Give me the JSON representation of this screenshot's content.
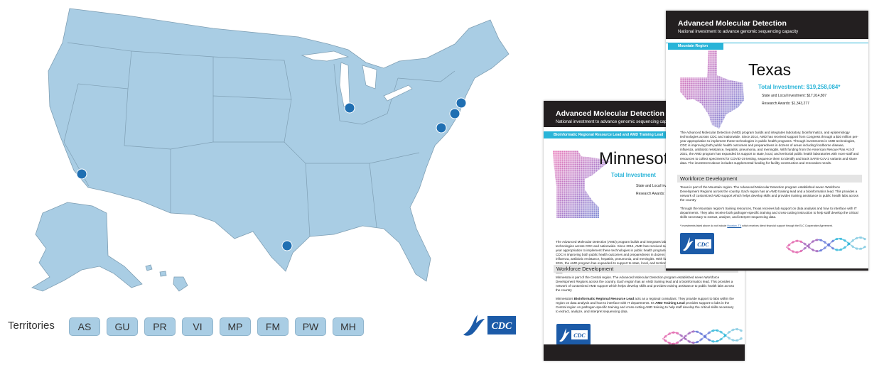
{
  "map": {
    "territories_label": "Territories",
    "territories": [
      "AS",
      "GU",
      "PR",
      "VI",
      "MP",
      "FM",
      "PW",
      "MH"
    ],
    "logo_text": "CDC"
  },
  "documents": [
    {
      "title": "Advanced Molecular Detection",
      "subtitle": "National investment to advance genomic sequencing capacity",
      "banner": "Bioinformatic Regional Resource Lead and AMD Training Lead",
      "state_name": "Minnesota",
      "total_investment": "Total Investment",
      "state_local": "State and Local Investment",
      "research_awards": "Research Awards: $",
      "body": "The Advanced Molecular Detection (AMD) program builds and integrates laboratory, bioinformatics, and epidemiology technologies across CDC and nationwide. Since 2014, AMD has received support from Congress through a $30 million per-year appropriation to implement these technologies in public health programs. Through investments in AMD technologies, CDC is improving both public health outcomes and preparedness in dozens of areas including foodborne disease, influenza, antibiotic resistance, hepatitis, pneumonia, and meningitis. With funding from the American Rescue Plan Act of 2021, the AMD program has expanded its support to state, local, and territorial public health laboratories with more staff and resources to collect specimens for COVID-19 testing, sequence them to identify and track SARS-CoV-2 variants and share data.",
      "workforce_heading": "Workforce Development",
      "workforce_paragraph": "Minnesota is part of the Central region. The Advanced Molecular Detection program established seven Workforce Development Regions across the country. Each region has an AMD training lead and a bioinformatics lead.  This provides a network of customized AMD support which helps develop skills and provides training assistance to public health labs across the country",
      "resource_paragraph": [
        "Minnesota's ",
        "Bioinformatic Regional Resource Lead",
        " acts as a regional consultant. They provide support to labs within the region on data analysis and how to interface with IT departments. Its ",
        "AMD Training Lead",
        " provides support to labs in the Central region on pathogen-specific training and cross-cutting AMD training to help staff develop the critical skills necessary to extract, analyze, and interpret sequencing data."
      ],
      "logo_text": "CDC"
    },
    {
      "title": "Advanced Molecular Detection",
      "subtitle": "National investment to advance genomic sequencing capacity",
      "banner": "Mountain Region",
      "state_name": "Texas",
      "total_investment": "Total Investment: $19,258,084*",
      "state_local": "State and Local Investment: $17,914,807",
      "research_awards": "Research Awards: $1,343,277",
      "body": "The Advanced Molecular Detection (AMD) program builds and integrates laboratory, bioinformatics, and epidemiology technologies across CDC and nationwide. Since 2014, AMD has received support from Congress through a $30 million per-year appropriation to implement these technologies in public health programs. Through investments in AMD technologies, CDC is improving both public health outcomes and preparedness in dozens of areas including foodborne disease, influenza, antibiotic resistance, hepatitis, pneumonia, and meningitis. With funding from the American Rescue Plan Act of 2021, the AMD program has expanded its support to state, local, and territorial public health laboratories with more staff and resources to collect specimens for COVID-19 testing, sequence them to identify and track SARS-CoV-2 variants and share data. The investment above includes supplemental funding for facility construction and renovation needs.",
      "workforce_heading": "Workforce Development",
      "workforce_paragraph": "Texas is part of the Mountain region. The Advanced Molecular Detection program established seven Workforce Development Regions across the country. Each region has an AMD training lead and a bioinformatics lead.  This provides a network of customized AMD support which helps develop skills and provides training assistance to public health labs across the country",
      "resource_paragraph": [
        "Through the Mountain region's training resources, Texas receives lab support on data analysis and how to interface with IT departments. They also receive both pathogen-specific training and cross-cutting instruction to help staff develop the critical skills necessary to extract, analyze, and interpret sequencing data."
      ],
      "footnote": [
        "* Investments listed above do not include ",
        "Houston, TX",
        " which receives direct financial support through the ELC Cooperative Agreement."
      ],
      "logo_text": "CDC"
    }
  ]
}
